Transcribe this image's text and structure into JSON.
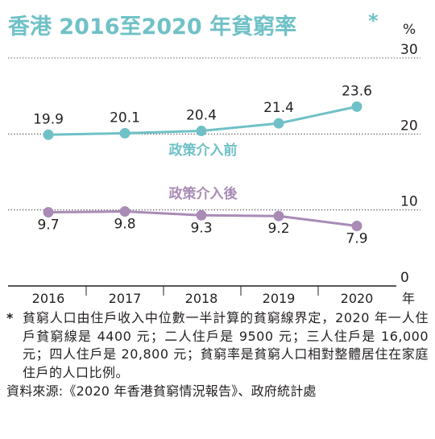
{
  "chart_data": {
    "type": "line",
    "title": "香港 2016至2020 年貧窮率",
    "title_mark": "*",
    "y_unit": "%",
    "x_unit": "年",
    "ylim": [
      0,
      30
    ],
    "y_ticks": [
      "0",
      "10",
      "20",
      "30"
    ],
    "categories": [
      "2016",
      "2017",
      "2018",
      "2019",
      "2020"
    ],
    "series": [
      {
        "name": "政策介入前",
        "color": "#6fc1c7",
        "values": [
          19.9,
          20.1,
          20.4,
          21.4,
          23.6
        ],
        "labels": [
          "19.9",
          "20.1",
          "20.4",
          "21.4",
          "23.6"
        ]
      },
      {
        "name": "政策介入後",
        "color": "#a98bb5",
        "values": [
          9.7,
          9.8,
          9.3,
          9.2,
          7.9
        ],
        "labels": [
          "9.7",
          "9.8",
          "9.3",
          "9.2",
          "7.9"
        ]
      }
    ],
    "grid": true
  },
  "notes": {
    "mark": "*",
    "text": "貧窮人口由住戶收入中位數一半計算的貧窮線界定，2020 年一人住戶貧窮線是 4400 元；二人住戶是 9500 元；三人住戶是 16,000 元；四人住戶是 20,800 元；貧窮率是貧窮人口相對整體居住在家庭住戶的人口比例。",
    "source": "資料來源:《2020 年香港貧窮情況報告》、政府統計處"
  }
}
